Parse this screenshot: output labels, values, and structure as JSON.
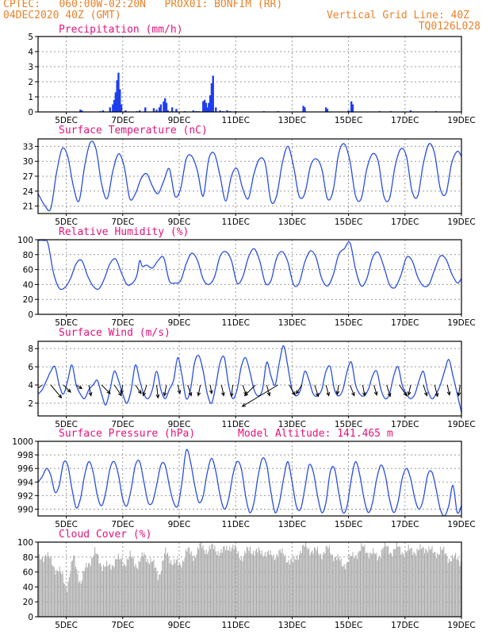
{
  "header": {
    "line1_left": "CPTEC:   060:00W-02:20N   PROX01: BONFIM (RR)",
    "line2_left": "04DEC2020 40Z (GMT)",
    "line2_right": "Vertical Grid Line: 40Z",
    "line3_right": "TQ0126L028"
  },
  "colors": {
    "header": "#e8822a",
    "title": "#e2147a",
    "line": "#2a4fe0",
    "bar": "#1d3ff0",
    "cloud": "#a8a8a8"
  },
  "x_axis": {
    "start": "04DEC2020 00Z",
    "end": "19DEC2020 00Z",
    "tick_labels": [
      "5DEC",
      "7DEC",
      "9DEC",
      "11DEC",
      "13DEC",
      "15DEC",
      "17DEC",
      "19DEC"
    ],
    "tick_days": [
      5,
      7,
      9,
      11,
      13,
      15,
      17,
      19
    ]
  },
  "chart_data": [
    {
      "type": "bar",
      "title": "Precipitation (mm/h)",
      "ylim": [
        0,
        5
      ],
      "yticks": [
        0,
        1,
        2,
        3,
        4,
        5
      ],
      "grid": true,
      "x_unit": "day",
      "x": [
        5.5,
        5.55,
        6.2,
        6.3,
        6.55,
        6.65,
        6.7,
        6.75,
        6.8,
        6.85,
        6.9,
        6.95,
        7.1,
        7.5,
        7.6,
        7.8,
        8.1,
        8.2,
        8.3,
        8.35,
        8.45,
        8.5,
        8.55,
        8.6,
        8.75,
        8.9,
        9.2,
        9.5,
        9.6,
        9.7,
        9.85,
        9.9,
        9.95,
        10.0,
        10.05,
        10.1,
        10.15,
        10.2,
        10.3,
        10.45,
        10.55,
        10.7,
        10.8,
        11.0,
        12.0,
        12.5,
        13.4,
        13.45,
        14.2,
        14.25,
        15.0,
        15.1,
        15.15,
        16.1,
        16.5,
        17.2,
        18.1
      ],
      "values": [
        0.15,
        0.1,
        0.05,
        0.1,
        0.3,
        0.5,
        0.8,
        1.3,
        2.1,
        2.6,
        1.5,
        0.5,
        0.1,
        0.05,
        0.1,
        0.3,
        0.25,
        0.15,
        0.3,
        0.5,
        0.7,
        0.9,
        0.6,
        0.1,
        0.3,
        0.2,
        0.05,
        0.1,
        0.05,
        0.05,
        0.7,
        0.8,
        0.6,
        0.3,
        0.6,
        1.1,
        1.9,
        2.4,
        0.3,
        0.1,
        0.05,
        0.1,
        0.05,
        0.05,
        0.05,
        0.05,
        0.4,
        0.3,
        0.3,
        0.2,
        0.1,
        0.7,
        0.5,
        0.05,
        0.05,
        0.1,
        0.05
      ]
    },
    {
      "type": "line",
      "title": "Surface Temperature (nC)",
      "ylim": [
        19.5,
        34.5
      ],
      "yticks": [
        21,
        24,
        27,
        30,
        33
      ],
      "grid": true,
      "x_unit": "day",
      "x": [
        4.0,
        4.25,
        4.45,
        4.65,
        4.85,
        5.05,
        5.25,
        5.45,
        5.65,
        5.85,
        6.05,
        6.25,
        6.45,
        6.65,
        6.85,
        7.05,
        7.25,
        7.45,
        7.65,
        7.85,
        8.05,
        8.25,
        8.45,
        8.65,
        8.85,
        9.05,
        9.25,
        9.45,
        9.65,
        9.85,
        10.05,
        10.25,
        10.45,
        10.65,
        10.85,
        11.05,
        11.25,
        11.45,
        11.65,
        11.85,
        12.05,
        12.25,
        12.45,
        12.65,
        12.85,
        13.05,
        13.25,
        13.45,
        13.65,
        13.85,
        14.05,
        14.25,
        14.45,
        14.65,
        14.85,
        15.05,
        15.25,
        15.45,
        15.65,
        15.85,
        16.05,
        16.25,
        16.45,
        16.65,
        16.85,
        17.05,
        17.25,
        17.45,
        17.65,
        17.85,
        18.05,
        18.25,
        18.45,
        18.65,
        18.85,
        19.0
      ],
      "values": [
        23.5,
        21.0,
        20.5,
        27.5,
        32.5,
        31.0,
        25.0,
        22.0,
        29.0,
        33.8,
        32.5,
        25.5,
        22.5,
        28.0,
        31.5,
        29.0,
        22.5,
        23.5,
        26.5,
        27.5,
        25.0,
        23.5,
        26.0,
        28.5,
        23.0,
        24.5,
        30.5,
        31.0,
        28.0,
        23.0,
        30.5,
        31.5,
        27.0,
        22.0,
        27.0,
        28.5,
        24.5,
        22.5,
        27.5,
        30.5,
        29.5,
        22.0,
        23.0,
        29.5,
        33.0,
        29.0,
        23.0,
        23.5,
        29.0,
        30.5,
        28.5,
        22.5,
        24.0,
        31.5,
        33.5,
        30.0,
        23.0,
        22.5,
        28.5,
        31.5,
        30.0,
        23.0,
        22.5,
        29.0,
        32.5,
        31.0,
        24.0,
        23.0,
        29.5,
        33.5,
        31.5,
        24.5,
        23.5,
        29.5,
        32.0,
        31.0
      ]
    },
    {
      "type": "line",
      "title": "Relative Humidity (%)",
      "ylim": [
        0,
        100
      ],
      "yticks": [
        0,
        20,
        40,
        60,
        80,
        100
      ],
      "grid": true,
      "x_unit": "day",
      "x": [
        4.0,
        4.2,
        4.35,
        4.55,
        4.75,
        4.95,
        5.15,
        5.35,
        5.55,
        5.75,
        5.95,
        6.15,
        6.35,
        6.55,
        6.75,
        6.95,
        7.15,
        7.35,
        7.5,
        7.6,
        7.7,
        7.85,
        8.05,
        8.25,
        8.45,
        8.65,
        8.85,
        9.05,
        9.25,
        9.45,
        9.65,
        9.85,
        10.05,
        10.25,
        10.45,
        10.65,
        10.85,
        11.05,
        11.25,
        11.45,
        11.65,
        11.85,
        12.05,
        12.25,
        12.45,
        12.65,
        12.85,
        13.05,
        13.25,
        13.45,
        13.65,
        13.85,
        14.05,
        14.25,
        14.45,
        14.65,
        14.85,
        15.05,
        15.25,
        15.45,
        15.65,
        15.85,
        16.05,
        16.25,
        16.45,
        16.65,
        16.85,
        17.05,
        17.25,
        17.45,
        17.65,
        17.85,
        18.05,
        18.25,
        18.45,
        18.65,
        18.85,
        19.0
      ],
      "values": [
        99,
        99,
        95,
        55,
        35,
        36,
        48,
        68,
        72,
        52,
        38,
        34,
        48,
        68,
        74,
        56,
        40,
        42,
        52,
        72,
        64,
        66,
        62,
        72,
        76,
        45,
        42,
        45,
        68,
        82,
        72,
        47,
        40,
        50,
        78,
        84,
        72,
        42,
        50,
        76,
        88,
        72,
        42,
        45,
        75,
        84,
        70,
        40,
        42,
        70,
        85,
        76,
        48,
        38,
        52,
        80,
        88,
        96,
        60,
        38,
        48,
        76,
        83,
        64,
        40,
        36,
        52,
        76,
        72,
        50,
        38,
        40,
        60,
        78,
        74,
        55,
        42,
        48
      ]
    },
    {
      "type": "line",
      "title": "Surface Wind (m/s)",
      "ylim": [
        0.6,
        8.8
      ],
      "yticks": [
        2,
        4,
        6,
        8
      ],
      "grid": true,
      "x_unit": "day",
      "x": [
        4.0,
        4.15,
        4.3,
        4.45,
        4.6,
        4.75,
        4.9,
        5.05,
        5.2,
        5.35,
        5.5,
        5.65,
        5.8,
        5.95,
        6.1,
        6.25,
        6.4,
        6.55,
        6.7,
        6.85,
        7.0,
        7.15,
        7.3,
        7.45,
        7.6,
        7.75,
        7.9,
        8.05,
        8.2,
        8.35,
        8.5,
        8.65,
        8.8,
        8.95,
        9.1,
        9.25,
        9.4,
        9.55,
        9.7,
        9.85,
        10.0,
        10.15,
        10.3,
        10.45,
        10.6,
        10.75,
        10.9,
        11.05,
        11.2,
        11.35,
        11.5,
        11.65,
        11.8,
        11.95,
        12.1,
        12.25,
        12.4,
        12.55,
        12.7,
        12.85,
        13.0,
        13.15,
        13.3,
        13.45,
        13.6,
        13.75,
        13.9,
        14.05,
        14.2,
        14.35,
        14.5,
        14.65,
        14.8,
        14.95,
        15.1,
        15.25,
        15.4,
        15.55,
        15.7,
        15.85,
        16.0,
        16.15,
        16.3,
        16.45,
        16.6,
        16.75,
        16.9,
        17.05,
        17.2,
        17.35,
        17.5,
        17.65,
        17.8,
        17.95,
        18.1,
        18.25,
        18.4,
        18.55,
        18.7,
        18.85,
        19.0
      ],
      "values": [
        3.0,
        3.5,
        4.5,
        5.5,
        6.0,
        4.0,
        3.0,
        4.5,
        6.2,
        4.0,
        3.0,
        2.5,
        3.5,
        4.0,
        4.5,
        3.0,
        1.8,
        3.5,
        5.5,
        4.5,
        3.0,
        2.0,
        3.5,
        6.2,
        4.5,
        3.0,
        2.5,
        3.5,
        5.5,
        3.5,
        2.5,
        3.5,
        4.5,
        7.0,
        5.0,
        2.5,
        3.5,
        6.5,
        7.2,
        5.5,
        3.0,
        2.0,
        4.0,
        6.5,
        7.0,
        4.0,
        2.5,
        3.5,
        6.0,
        7.0,
        5.5,
        3.5,
        2.8,
        3.5,
        6.5,
        5.0,
        4.0,
        6.5,
        8.3,
        6.0,
        3.5,
        2.8,
        3.5,
        5.5,
        4.5,
        3.0,
        2.8,
        3.5,
        5.5,
        6.0,
        3.5,
        2.8,
        3.5,
        5.5,
        6.5,
        4.0,
        3.0,
        2.8,
        3.5,
        5.0,
        5.5,
        3.5,
        2.5,
        3.0,
        5.0,
        6.0,
        4.0,
        3.0,
        2.5,
        3.0,
        4.5,
        5.5,
        3.5,
        2.5,
        3.0,
        4.0,
        5.5,
        6.8,
        5.0,
        3.0,
        1.0
      ],
      "vectors": {
        "x": [
          4.15,
          4.45,
          4.9,
          5.35,
          5.8,
          6.25,
          6.7,
          7.0,
          7.45,
          7.85,
          8.2,
          8.55,
          8.95,
          9.3,
          9.75,
          10.1,
          10.5,
          10.9,
          11.25,
          11.7,
          12.1,
          12.5,
          12.9,
          13.35,
          13.8,
          14.2,
          14.65,
          15.05,
          15.5,
          15.9,
          16.35,
          16.8,
          17.2,
          17.65,
          18.05,
          18.5,
          18.95
        ],
        "u_ms": [
          -2.0,
          1.5,
          1.0,
          0.8,
          0.3,
          1.2,
          1.0,
          -0.2,
          0.8,
          -0.5,
          0.2,
          -0.3,
          0.3,
          0.5,
          -0.3,
          0.2,
          0.3,
          -0.2,
          0.5,
          -1.5,
          0.4,
          -5.0,
          0.8,
          -0.8,
          0.5,
          0.4,
          -0.2,
          0.6,
          0.3,
          0.4,
          0.5,
          1.0,
          -0.3,
          0.5,
          0.4,
          0.3,
          -0.2
        ],
        "v_ms": [
          -1.5,
          -1.8,
          -1.0,
          -0.5,
          -1.5,
          -1.2,
          -1.5,
          -1.2,
          -1.2,
          -1.5,
          -1.8,
          -1.5,
          -1.2,
          -1.5,
          -1.5,
          -1.2,
          -1.5,
          -1.6,
          -1.4,
          -1.5,
          -1.5,
          -3.0,
          -1.4,
          -1.2,
          -1.6,
          -1.5,
          -1.3,
          -1.5,
          -1.5,
          -1.4,
          -1.6,
          -1.5,
          -1.4,
          -1.5,
          -1.6,
          -1.4,
          -1.5
        ]
      }
    },
    {
      "type": "line",
      "title": "Surface Pressure (hPa)",
      "annotation": "Model Altitude: 141.465 m",
      "ylim": [
        989,
        1000
      ],
      "yticks": [
        990,
        992,
        994,
        996,
        998,
        1000
      ],
      "grid": true,
      "x_unit": "day",
      "x": [
        4.0,
        4.15,
        4.3,
        4.45,
        4.6,
        4.75,
        4.9,
        5.05,
        5.2,
        5.35,
        5.5,
        5.65,
        5.8,
        5.95,
        6.1,
        6.25,
        6.4,
        6.55,
        6.7,
        6.85,
        7.0,
        7.15,
        7.3,
        7.45,
        7.6,
        7.75,
        7.9,
        8.05,
        8.2,
        8.35,
        8.5,
        8.65,
        8.8,
        8.95,
        9.1,
        9.25,
        9.4,
        9.55,
        9.7,
        9.85,
        10.0,
        10.15,
        10.3,
        10.45,
        10.6,
        10.75,
        10.9,
        11.05,
        11.2,
        11.35,
        11.5,
        11.65,
        11.8,
        11.95,
        12.1,
        12.25,
        12.4,
        12.55,
        12.7,
        12.85,
        13.0,
        13.15,
        13.3,
        13.45,
        13.6,
        13.75,
        13.9,
        14.05,
        14.2,
        14.35,
        14.5,
        14.65,
        14.8,
        14.95,
        15.1,
        15.25,
        15.4,
        15.55,
        15.7,
        15.85,
        16.0,
        16.15,
        16.3,
        16.45,
        16.6,
        16.75,
        16.9,
        17.05,
        17.2,
        17.35,
        17.5,
        17.65,
        17.8,
        17.95,
        18.1,
        18.25,
        18.4,
        18.55,
        18.7,
        18.85,
        19.0
      ],
      "values": [
        994.0,
        994.8,
        996.0,
        995.0,
        992.5,
        993.5,
        996.8,
        996.5,
        993.0,
        990.2,
        991.5,
        995.0,
        997.0,
        995.5,
        992.0,
        990.5,
        992.5,
        996.0,
        997.0,
        995.0,
        991.5,
        990.5,
        993.0,
        996.5,
        997.0,
        994.0,
        991.0,
        991.0,
        993.5,
        996.5,
        996.5,
        993.5,
        991.0,
        990.5,
        994.0,
        998.7,
        997.0,
        993.5,
        991.0,
        992.0,
        995.5,
        997.5,
        995.5,
        992.0,
        990.0,
        991.5,
        995.0,
        997.0,
        996.0,
        992.0,
        989.5,
        991.0,
        995.0,
        997.5,
        996.5,
        992.5,
        989.5,
        991.0,
        994.5,
        997.0,
        994.0,
        990.5,
        990.0,
        993.0,
        996.5,
        995.5,
        992.0,
        989.5,
        991.0,
        995.5,
        996.0,
        992.5,
        989.5,
        990.5,
        994.5,
        997.0,
        995.0,
        991.5,
        989.5,
        991.0,
        994.5,
        996.5,
        995.0,
        991.5,
        989.5,
        991.0,
        994.5,
        996.0,
        994.5,
        991.5,
        990.0,
        991.5,
        995.0,
        995.5,
        993.0,
        990.0,
        989.0,
        990.5,
        993.5,
        989.5,
        990.5
      ]
    },
    {
      "type": "area",
      "title": "Cloud Cover (%)",
      "ylim": [
        0,
        100
      ],
      "yticks": [
        0,
        20,
        40,
        60,
        80,
        100
      ],
      "grid": true,
      "x_unit": "day",
      "x": [
        4.0,
        4.25,
        4.5,
        4.75,
        5.0,
        5.25,
        5.5,
        5.75,
        6.0,
        6.25,
        6.5,
        6.75,
        7.0,
        7.25,
        7.5,
        7.75,
        8.0,
        8.25,
        8.5,
        8.75,
        9.0,
        9.25,
        9.5,
        9.75,
        10.0,
        10.25,
        10.5,
        10.75,
        11.0,
        11.25,
        11.5,
        11.75,
        12.0,
        12.25,
        12.5,
        12.75,
        13.0,
        13.25,
        13.5,
        13.75,
        14.0,
        14.25,
        14.5,
        14.75,
        15.0,
        15.25,
        15.5,
        15.75,
        16.0,
        16.25,
        16.5,
        16.75,
        17.0,
        17.25,
        17.5,
        17.75,
        18.0,
        18.25,
        18.5,
        18.75,
        19.0
      ],
      "values": [
        75,
        85,
        70,
        60,
        40,
        80,
        45,
        72,
        85,
        70,
        65,
        78,
        72,
        80,
        70,
        82,
        75,
        55,
        85,
        75,
        68,
        88,
        82,
        94,
        90,
        92,
        85,
        96,
        88,
        80,
        92,
        85,
        88,
        80,
        86,
        82,
        70,
        88,
        94,
        88,
        85,
        90,
        82,
        70,
        75,
        85,
        92,
        86,
        80,
        94,
        88,
        92,
        86,
        90,
        88,
        94,
        84,
        90,
        80,
        78,
        75
      ]
    }
  ]
}
